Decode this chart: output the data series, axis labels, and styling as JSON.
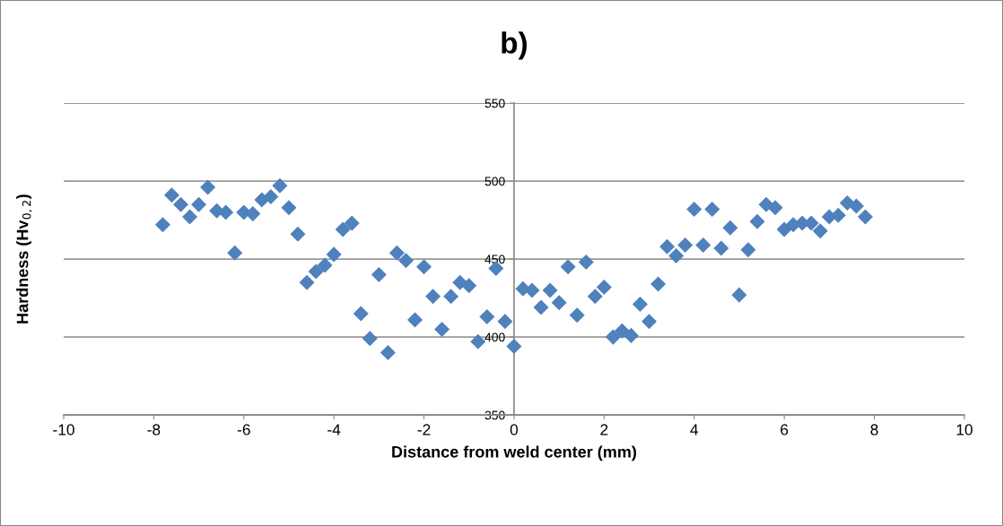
{
  "chart_data": {
    "type": "scatter",
    "title": "b)",
    "xlabel": "Distance from weld center (mm)",
    "ylabel": "Hardness (Hv$_{0,2}$)",
    "x": [
      -7.8,
      -7.6,
      -7.4,
      -7.2,
      -7.0,
      -6.8,
      -6.6,
      -6.4,
      -6.2,
      -6.0,
      -5.8,
      -5.6,
      -5.4,
      -5.2,
      -5.0,
      -4.8,
      -4.6,
      -4.4,
      -4.2,
      -4.0,
      -3.8,
      -3.6,
      -3.4,
      -3.2,
      -3.0,
      -2.8,
      -2.6,
      -2.4,
      -2.2,
      -2.0,
      -1.8,
      -1.6,
      -1.4,
      -1.2,
      -1.0,
      -0.8,
      -0.6,
      -0.4,
      -0.2,
      0.0,
      0.2,
      0.4,
      0.6,
      0.8,
      1.0,
      1.2,
      1.4,
      1.6,
      1.8,
      2.0,
      2.2,
      2.4,
      2.6,
      2.8,
      3.0,
      3.2,
      3.4,
      3.6,
      3.8,
      4.0,
      4.2,
      4.4,
      4.6,
      4.8,
      5.0,
      5.2,
      5.4,
      5.6,
      5.8,
      6.0,
      6.2,
      6.4,
      6.6,
      6.8,
      7.0,
      7.2,
      7.4,
      7.6,
      7.8
    ],
    "series": [
      {
        "color": "#4f81bd",
        "values": [
          472,
          491,
          485,
          477,
          485,
          496,
          481,
          480,
          454,
          480,
          479,
          488,
          490,
          497,
          483,
          466,
          435,
          442,
          446,
          453,
          469,
          473,
          415,
          399,
          440,
          390,
          454,
          449,
          411,
          445,
          426,
          405,
          426,
          435,
          433,
          397,
          413,
          444,
          410,
          394,
          431,
          430,
          419,
          430,
          422,
          445,
          414,
          448,
          426,
          432,
          400,
          404,
          401,
          421,
          410,
          434,
          458,
          452,
          459,
          482,
          459,
          482,
          457,
          470,
          427,
          456,
          474,
          485,
          483,
          469,
          472,
          473,
          473,
          468,
          477,
          478,
          486,
          484,
          477
        ]
      }
    ],
    "xlim": [
      -10,
      10
    ],
    "xticks": [
      -10,
      -8,
      -6,
      -4,
      -2,
      0,
      2,
      4,
      6,
      8,
      10
    ],
    "ylim": [
      350,
      550
    ],
    "yticks": [
      350,
      400,
      450,
      500,
      550
    ],
    "grid": "y",
    "marker": "diamond",
    "legend": false
  }
}
